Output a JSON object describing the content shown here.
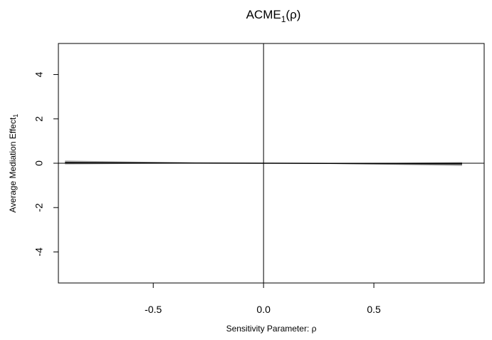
{
  "chart_data": {
    "type": "line",
    "title": "ACME",
    "title_subscript": "1",
    "title_suffix": "(ρ)",
    "xlabel": "Sensitivity Parameter: ρ",
    "ylabel": "Average Mediation Effect",
    "ylabel_subscript": "1",
    "xlim": [
      -0.93,
      1.0
    ],
    "ylim": [
      -5.4,
      5.4
    ],
    "x_ticks": [
      {
        "value": -0.5,
        "label": "-0.5"
      },
      {
        "value": 0.0,
        "label": "0.0"
      },
      {
        "value": 0.5,
        "label": "0.5"
      }
    ],
    "y_ticks": [
      {
        "value": -4,
        "label": "-4"
      },
      {
        "value": -2,
        "label": "-2"
      },
      {
        "value": 0,
        "label": "0"
      },
      {
        "value": 2,
        "label": "2"
      },
      {
        "value": 4,
        "label": "4"
      }
    ],
    "reference_lines": {
      "horizontal_y": 0,
      "vertical_x": 0
    },
    "series": [
      {
        "x": [
          -0.9,
          -0.6,
          -0.3,
          0.0,
          0.3,
          0.6,
          0.9
        ],
        "y": [
          0.03,
          0.02,
          0.01,
          0.0,
          -0.01,
          -0.02,
          -0.03
        ],
        "ci_lower": [
          -0.05,
          -0.03,
          -0.01,
          -0.01,
          -0.03,
          -0.07,
          -0.12
        ],
        "ci_upper": [
          0.12,
          0.07,
          0.03,
          0.01,
          0.01,
          0.02,
          0.05
        ],
        "line_color": "#000000",
        "band_color": "#888888"
      }
    ],
    "grid": false,
    "legend": "none"
  }
}
